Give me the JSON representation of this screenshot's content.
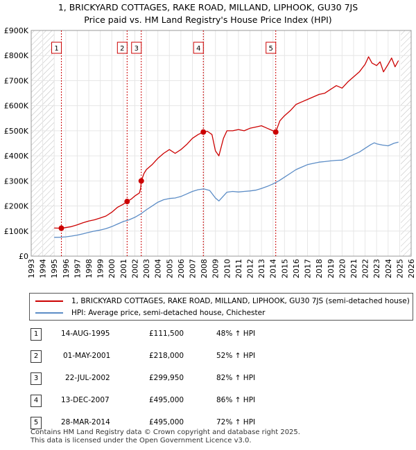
{
  "title_line1": "1, BRICKYARD COTTAGES, RAKE ROAD, MILLAND, LIPHOOK, GU30 7JS",
  "title_line2": "Price paid vs. HM Land Registry's House Price Index (HPI)",
  "colors": {
    "property": "#cc0000",
    "hpi": "#5b8cc6",
    "hatch": "#bbbbbb",
    "grid": "#e6e6e6"
  },
  "legend": {
    "property": "1, BRICKYARD COTTAGES, RAKE ROAD, MILLAND, LIPHOOK, GU30 7JS (semi-detached house)",
    "hpi": "HPI: Average price, semi-detached house, Chichester"
  },
  "sales": [
    {
      "num": "1",
      "date": "14-AUG-1995",
      "price": "£111,500",
      "pct": "48% ↑ HPI"
    },
    {
      "num": "2",
      "date": "01-MAY-2001",
      "price": "£218,000",
      "pct": "52% ↑ HPI"
    },
    {
      "num": "3",
      "date": "22-JUL-2002",
      "price": "£299,950",
      "pct": "82% ↑ HPI"
    },
    {
      "num": "4",
      "date": "13-DEC-2007",
      "price": "£495,000",
      "pct": "86% ↑ HPI"
    },
    {
      "num": "5",
      "date": "28-MAR-2014",
      "price": "£495,000",
      "pct": "72% ↑ HPI"
    }
  ],
  "footer_line1": "Contains HM Land Registry data © Crown copyright and database right 2025.",
  "footer_line2": "This data is licensed under the Open Government Licence v3.0.",
  "chart_data": {
    "type": "line",
    "xlim": [
      1993,
      2026
    ],
    "ylim": [
      0,
      900000
    ],
    "y_ticks": [
      0,
      100000,
      200000,
      300000,
      400000,
      500000,
      600000,
      700000,
      800000,
      900000
    ],
    "y_tick_labels": [
      "£0",
      "£100K",
      "£200K",
      "£300K",
      "£400K",
      "£500K",
      "£600K",
      "£700K",
      "£800K",
      "£900K"
    ],
    "x_ticks": [
      1993,
      1994,
      1995,
      1996,
      1997,
      1998,
      1999,
      2000,
      2001,
      2002,
      2003,
      2004,
      2005,
      2006,
      2007,
      2008,
      2009,
      2010,
      2011,
      2012,
      2013,
      2014,
      2015,
      2016,
      2017,
      2018,
      2019,
      2020,
      2021,
      2022,
      2023,
      2024,
      2025,
      2026
    ],
    "hatched_before": 1995.0,
    "hatched_after": 2025.1,
    "markers": [
      {
        "label": "1",
        "x": 1995.62,
        "y": 111500
      },
      {
        "label": "2",
        "x": 2001.33,
        "y": 218000
      },
      {
        "label": "3",
        "x": 2002.56,
        "y": 299950
      },
      {
        "label": "4",
        "x": 2007.95,
        "y": 495000
      },
      {
        "label": "5",
        "x": 2014.24,
        "y": 495000
      }
    ],
    "series": [
      {
        "name": "1, BRICKYARD COTTAGES, RAKE ROAD, MILLAND, LIPHOOK, GU30 7JS (semi-detached house)",
        "color": "#cc0000",
        "points": [
          [
            1995.0,
            112000
          ],
          [
            1995.62,
            111500
          ],
          [
            1996.0,
            114000
          ],
          [
            1996.5,
            118000
          ],
          [
            1997.0,
            125000
          ],
          [
            1997.5,
            133000
          ],
          [
            1998.0,
            140000
          ],
          [
            1998.5,
            145000
          ],
          [
            1999.0,
            152000
          ],
          [
            1999.5,
            160000
          ],
          [
            2000.0,
            175000
          ],
          [
            2000.5,
            195000
          ],
          [
            2001.0,
            207000
          ],
          [
            2001.33,
            218000
          ],
          [
            2001.7,
            228000
          ],
          [
            2002.0,
            240000
          ],
          [
            2002.4,
            252000
          ],
          [
            2002.5,
            270000
          ],
          [
            2002.56,
            299950
          ],
          [
            2002.8,
            330000
          ],
          [
            2003.0,
            345000
          ],
          [
            2003.5,
            365000
          ],
          [
            2004.0,
            390000
          ],
          [
            2004.5,
            410000
          ],
          [
            2005.0,
            425000
          ],
          [
            2005.5,
            410000
          ],
          [
            2006.0,
            425000
          ],
          [
            2006.5,
            445000
          ],
          [
            2007.0,
            470000
          ],
          [
            2007.5,
            485000
          ],
          [
            2007.95,
            495000
          ],
          [
            2008.3,
            498000
          ],
          [
            2008.7,
            485000
          ],
          [
            2009.0,
            420000
          ],
          [
            2009.3,
            400000
          ],
          [
            2009.7,
            470000
          ],
          [
            2010.0,
            500000
          ],
          [
            2010.5,
            500000
          ],
          [
            2011.0,
            505000
          ],
          [
            2011.5,
            500000
          ],
          [
            2012.0,
            510000
          ],
          [
            2012.5,
            515000
          ],
          [
            2013.0,
            520000
          ],
          [
            2013.5,
            510000
          ],
          [
            2014.0,
            500000
          ],
          [
            2014.24,
            495000
          ],
          [
            2014.6,
            540000
          ],
          [
            2015.0,
            560000
          ],
          [
            2015.5,
            580000
          ],
          [
            2016.0,
            605000
          ],
          [
            2016.5,
            615000
          ],
          [
            2017.0,
            625000
          ],
          [
            2017.5,
            635000
          ],
          [
            2018.0,
            645000
          ],
          [
            2018.5,
            650000
          ],
          [
            2019.0,
            665000
          ],
          [
            2019.5,
            680000
          ],
          [
            2020.0,
            670000
          ],
          [
            2020.5,
            695000
          ],
          [
            2021.0,
            715000
          ],
          [
            2021.5,
            735000
          ],
          [
            2022.0,
            765000
          ],
          [
            2022.3,
            795000
          ],
          [
            2022.6,
            770000
          ],
          [
            2023.0,
            760000
          ],
          [
            2023.3,
            775000
          ],
          [
            2023.6,
            735000
          ],
          [
            2024.0,
            765000
          ],
          [
            2024.3,
            790000
          ],
          [
            2024.6,
            755000
          ],
          [
            2024.9,
            780000
          ]
        ]
      },
      {
        "name": "HPI: Average price, semi-detached house, Chichester",
        "color": "#5b8cc6",
        "points": [
          [
            1995.0,
            75000
          ],
          [
            1995.5,
            75500
          ],
          [
            1996.0,
            77000
          ],
          [
            1996.5,
            80000
          ],
          [
            1997.0,
            84000
          ],
          [
            1997.5,
            89000
          ],
          [
            1998.0,
            95000
          ],
          [
            1998.5,
            100000
          ],
          [
            1999.0,
            104000
          ],
          [
            1999.5,
            110000
          ],
          [
            2000.0,
            118000
          ],
          [
            2000.5,
            128000
          ],
          [
            2001.0,
            138000
          ],
          [
            2001.5,
            145000
          ],
          [
            2002.0,
            155000
          ],
          [
            2002.5,
            168000
          ],
          [
            2003.0,
            185000
          ],
          [
            2003.5,
            200000
          ],
          [
            2004.0,
            215000
          ],
          [
            2004.5,
            225000
          ],
          [
            2005.0,
            230000
          ],
          [
            2005.5,
            232000
          ],
          [
            2006.0,
            238000
          ],
          [
            2006.5,
            248000
          ],
          [
            2007.0,
            258000
          ],
          [
            2007.5,
            265000
          ],
          [
            2008.0,
            268000
          ],
          [
            2008.5,
            262000
          ],
          [
            2009.0,
            232000
          ],
          [
            2009.3,
            220000
          ],
          [
            2009.7,
            240000
          ],
          [
            2010.0,
            255000
          ],
          [
            2010.5,
            258000
          ],
          [
            2011.0,
            256000
          ],
          [
            2011.5,
            258000
          ],
          [
            2012.0,
            260000
          ],
          [
            2012.5,
            263000
          ],
          [
            2013.0,
            270000
          ],
          [
            2013.5,
            278000
          ],
          [
            2014.0,
            288000
          ],
          [
            2014.5,
            300000
          ],
          [
            2015.0,
            315000
          ],
          [
            2015.5,
            330000
          ],
          [
            2016.0,
            345000
          ],
          [
            2016.5,
            355000
          ],
          [
            2017.0,
            365000
          ],
          [
            2017.5,
            370000
          ],
          [
            2018.0,
            375000
          ],
          [
            2018.5,
            377000
          ],
          [
            2019.0,
            380000
          ],
          [
            2019.5,
            382000
          ],
          [
            2020.0,
            383000
          ],
          [
            2020.5,
            393000
          ],
          [
            2021.0,
            405000
          ],
          [
            2021.5,
            415000
          ],
          [
            2022.0,
            430000
          ],
          [
            2022.5,
            445000
          ],
          [
            2022.8,
            452000
          ],
          [
            2023.0,
            448000
          ],
          [
            2023.5,
            443000
          ],
          [
            2024.0,
            440000
          ],
          [
            2024.5,
            450000
          ],
          [
            2024.9,
            455000
          ]
        ]
      }
    ]
  }
}
